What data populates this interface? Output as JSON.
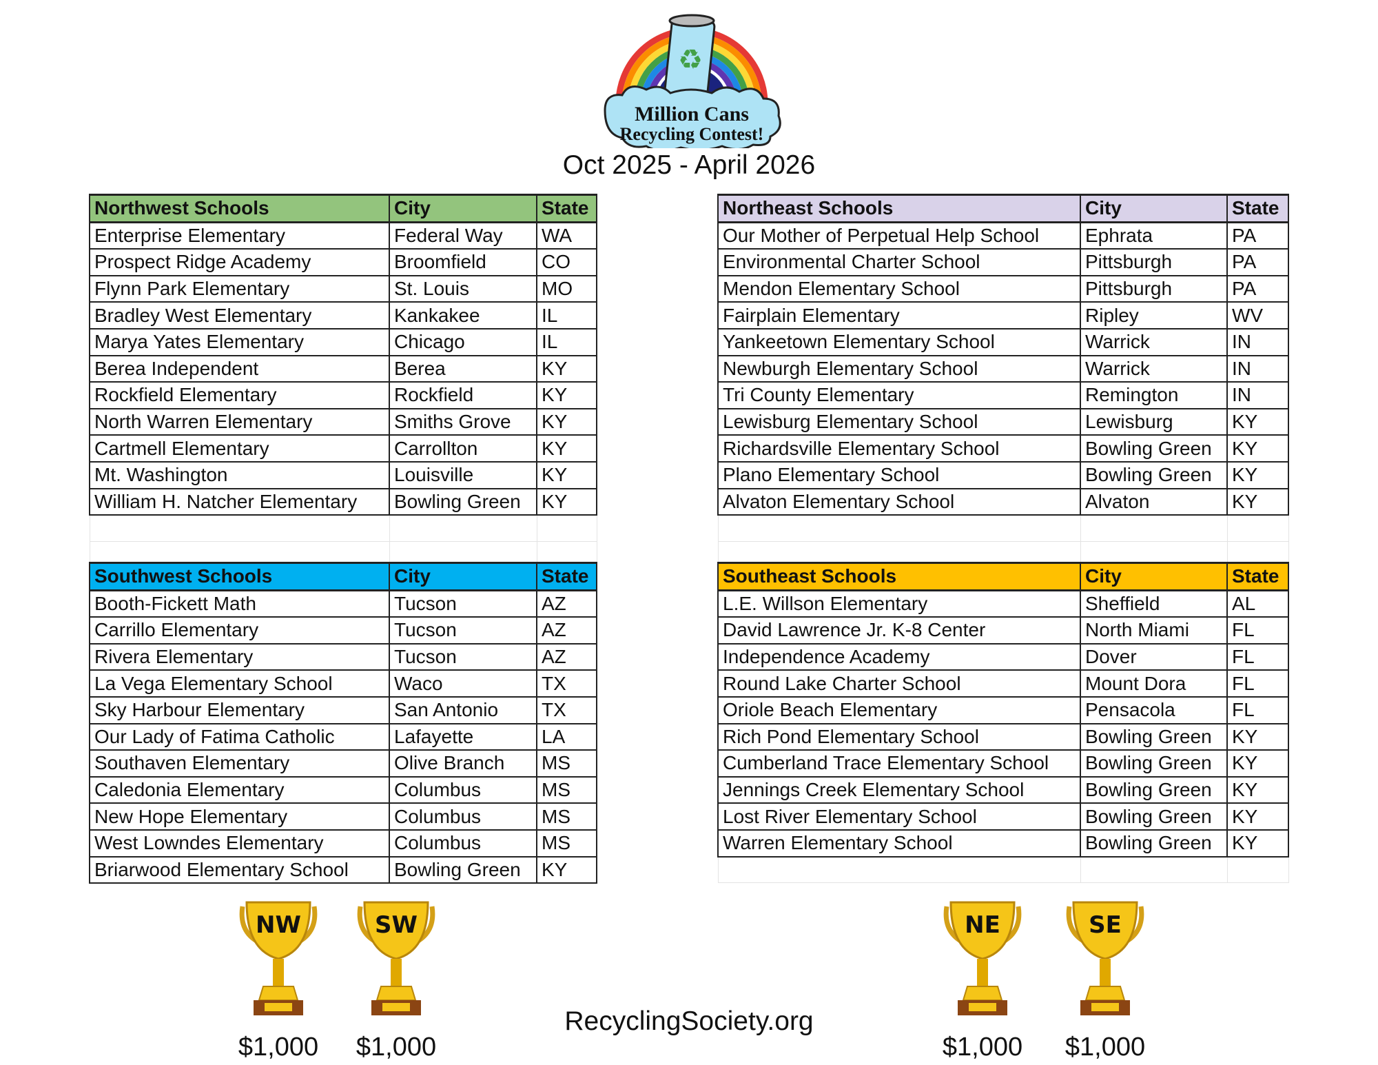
{
  "logo": {
    "line1": "Million Cans",
    "line2": "Recycling Contest!"
  },
  "date_range": "Oct 2025 - April 2026",
  "website": "RecyclingSociety.org",
  "colors": {
    "northwest": "#93c47d",
    "northeast": "#d9d2e9",
    "southwest": "#00b0f0",
    "southeast": "#ffc000"
  },
  "tables": {
    "northwest": {
      "headers": [
        "Northwest Schools",
        "City",
        "State"
      ],
      "rows": [
        [
          "Enterprise Elementary",
          "Federal Way",
          "WA"
        ],
        [
          "Prospect Ridge Academy",
          "Broomfield",
          "CO"
        ],
        [
          "Flynn Park Elementary",
          "St. Louis",
          "MO"
        ],
        [
          "Bradley West Elementary",
          "Kankakee",
          "IL"
        ],
        [
          "Marya Yates Elementary",
          "Chicago",
          "IL"
        ],
        [
          "Berea Independent",
          "Berea",
          "KY"
        ],
        [
          "Rockfield Elementary",
          "Rockfield",
          "KY"
        ],
        [
          "North Warren Elementary",
          "Smiths Grove",
          "KY"
        ],
        [
          "Cartmell Elementary",
          "Carrollton",
          "KY"
        ],
        [
          "Mt. Washington",
          "Louisville",
          "KY"
        ],
        [
          "William H. Natcher Elementary",
          "Bowling Green",
          "KY"
        ]
      ]
    },
    "northeast": {
      "headers": [
        "Northeast Schools",
        "City",
        "State"
      ],
      "rows": [
        [
          "Our Mother of Perpetual Help School",
          "Ephrata",
          "PA"
        ],
        [
          "Environmental Charter School",
          "Pittsburgh",
          "PA"
        ],
        [
          "Mendon Elementary School",
          "Pittsburgh",
          "PA"
        ],
        [
          "Fairplain Elementary",
          "Ripley",
          "WV"
        ],
        [
          "Yankeetown Elementary School",
          "Warrick",
          "IN"
        ],
        [
          "Newburgh Elementary School",
          "Warrick",
          "IN"
        ],
        [
          "Tri County Elementary",
          "Remington",
          "IN"
        ],
        [
          "Lewisburg Elementary School",
          "Lewisburg",
          "KY"
        ],
        [
          "Richardsville Elementary School",
          "Bowling Green",
          "KY"
        ],
        [
          "Plano Elementary School",
          "Bowling Green",
          "KY"
        ],
        [
          "Alvaton Elementary School",
          "Alvaton",
          "KY"
        ]
      ]
    },
    "southwest": {
      "headers": [
        "Southwest Schools",
        "City",
        "State"
      ],
      "rows": [
        [
          "Booth-Fickett Math",
          "Tucson",
          "AZ"
        ],
        [
          "Carrillo Elementary",
          "Tucson",
          "AZ"
        ],
        [
          "Rivera Elementary",
          "Tucson",
          "AZ"
        ],
        [
          "La Vega Elementary School",
          "Waco",
          "TX"
        ],
        [
          "Sky Harbour Elementary",
          "San Antonio",
          "TX"
        ],
        [
          "Our Lady of Fatima Catholic",
          "Lafayette",
          "LA"
        ],
        [
          "Southaven Elementary",
          "Olive Branch",
          "MS"
        ],
        [
          "Caledonia Elementary",
          "Columbus",
          "MS"
        ],
        [
          "New Hope Elementary",
          "Columbus",
          "MS"
        ],
        [
          "West Lowndes Elementary",
          "Columbus",
          "MS"
        ],
        [
          "Briarwood Elementary School",
          "Bowling Green",
          "KY"
        ]
      ]
    },
    "southeast": {
      "headers": [
        "Southeast Schools",
        "City",
        "State"
      ],
      "rows": [
        [
          "L.E. Willson Elementary",
          "Sheffield",
          "AL"
        ],
        [
          "David Lawrence Jr. K-8 Center",
          "North Miami",
          "FL"
        ],
        [
          "Independence Academy",
          "Dover",
          "FL"
        ],
        [
          "Round Lake Charter School",
          "Mount Dora",
          "FL"
        ],
        [
          "Oriole Beach Elementary",
          "Pensacola",
          "FL"
        ],
        [
          "Rich Pond Elementary School",
          "Bowling Green",
          "KY"
        ],
        [
          "Cumberland Trace Elementary School",
          "Bowling Green",
          "KY"
        ],
        [
          "Jennings Creek Elementary School",
          "Bowling Green",
          "KY"
        ],
        [
          "Lost River Elementary School",
          "Bowling Green",
          "KY"
        ],
        [
          "Warren Elementary School",
          "Bowling Green",
          "KY"
        ]
      ]
    }
  },
  "trophies": [
    {
      "label": "NW",
      "prize": "$1,000",
      "icon": "trophy-icon"
    },
    {
      "label": "SW",
      "prize": "$1,000",
      "icon": "trophy-icon"
    },
    {
      "label": "NE",
      "prize": "$1,000",
      "icon": "trophy-icon"
    },
    {
      "label": "SE",
      "prize": "$1,000",
      "icon": "trophy-icon"
    }
  ]
}
